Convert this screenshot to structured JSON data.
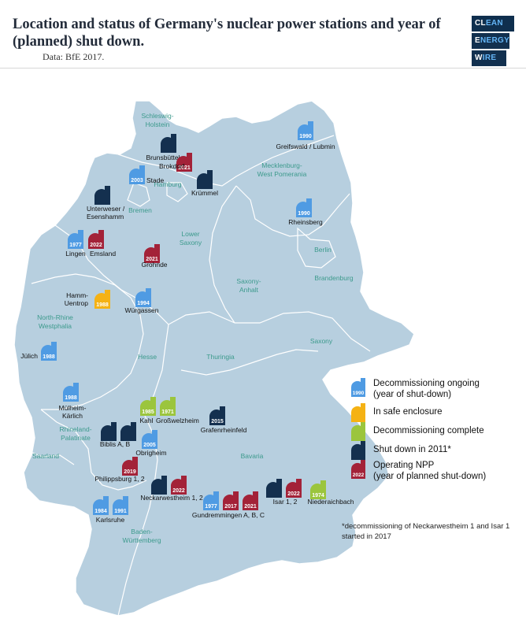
{
  "title": "Location and status of Germany's nuclear power stations and year of (planned) shut down.",
  "source": "Data: BfE 2017.",
  "logo": {
    "line1a": "CL",
    "line1b": "EAN",
    "line2a": "E",
    "line2b": "NERGY",
    "line3a": "W",
    "line3b": "IRE"
  },
  "colors": {
    "ongoing": "#4f9be3",
    "safe": "#f5b214",
    "complete": "#9bc53d",
    "shutdown2011": "#14304f",
    "operating": "#a32238",
    "land": "#b7cfdf",
    "land_stroke": "#ffffff",
    "state_text": "#3c9a8c"
  },
  "legend": {
    "ongoing_label": "Decommissioning ongoing",
    "ongoing_sub": "(year of shut-down)",
    "ongoing_year": "1990",
    "safe_label": "In safe enclosure",
    "complete_label": "Decommissioning complete",
    "shutdown_label": "Shut down in 2011*",
    "operating_label": "Operating NPP",
    "operating_sub": "(year of planned shut-down)",
    "operating_year": "2022"
  },
  "footnote": "*decommissioning of Neckarwestheim 1 and Isar 1 started in 2017",
  "states": {
    "schleswig": "Schleswig-Holstein",
    "mecklenburg": "Mecklenburg-West Pomerania",
    "hamburg": "Hamburg",
    "bremen": "Bremen",
    "lower_saxony": "Lower Saxony",
    "berlin": "Berlin",
    "brandenburg": "Brandenburg",
    "saxony_anhalt": "Saxony-Anhalt",
    "nrw": "North-Rhine Westphalia",
    "hesse": "Hesse",
    "thuringia": "Thuringia",
    "saxony": "Saxony",
    "rhineland": "Rhineland-Palatinate",
    "saarland": "Saarland",
    "bavaria": "Bavaria",
    "bw": "Baden-Württemberg"
  },
  "plants": {
    "brunsbuettel": {
      "name": "Brunsbüttel",
      "status": "shutdown2011",
      "year": ""
    },
    "brokdorf": {
      "name": "Brokdorf",
      "status": "operating",
      "year": "2021"
    },
    "stade": {
      "name": "Stade",
      "status": "ongoing",
      "year": "2003"
    },
    "kruemmel": {
      "name": "Krümmel",
      "status": "shutdown2011",
      "year": ""
    },
    "greifswald": {
      "name": "Greifswald / Lubmin",
      "status": "ongoing",
      "year": "1990"
    },
    "rheinsberg": {
      "name": "Rheinsberg",
      "status": "ongoing",
      "year": "1990"
    },
    "unterweser": {
      "name": "Unterweser / Esenshamm",
      "status": "shutdown2011",
      "year": ""
    },
    "lingen": {
      "name": "Lingen",
      "status": "ongoing",
      "year": "1977"
    },
    "emsland": {
      "name": "Emsland",
      "status": "operating",
      "year": "2022"
    },
    "grohnde": {
      "name": "Grohnde",
      "status": "operating",
      "year": "2021"
    },
    "hamm": {
      "name": "Hamm-Uentrop",
      "status": "safe",
      "year": "1988"
    },
    "wuergassen": {
      "name": "Würgassen",
      "status": "ongoing",
      "year": "1994"
    },
    "juelich": {
      "name": "Jülich",
      "status": "ongoing",
      "year": "1988"
    },
    "muelheim": {
      "name": "Mülheim-Kärlich",
      "status": "ongoing",
      "year": "1988"
    },
    "kahl": {
      "name": "Kahl",
      "status": "complete",
      "year": "1985"
    },
    "grosswelzheim": {
      "name": "Großwelzheim",
      "status": "complete",
      "year": "1971"
    },
    "grafenrheinfeld": {
      "name": "Grafenrheinfeld",
      "status": "shutdown2011",
      "year": "2015"
    },
    "biblis": {
      "name": "Biblis A, B",
      "status": "shutdown2011",
      "year": ""
    },
    "obrigheim": {
      "name": "Obrigheim",
      "status": "ongoing",
      "year": "2005"
    },
    "philippsburg": {
      "name": "Philippsburg 1, 2",
      "status": "operating",
      "year": "2019"
    },
    "neckarwestheim": {
      "name": "Neckarwestheim 1, 2",
      "status": "operating",
      "year": "2022"
    },
    "karlsruhe": {
      "name": "Karlsruhe",
      "status": "ongoing",
      "year": "1984",
      "year2": "1991"
    },
    "gundremmingen": {
      "name": "Gundremmingen A, B, C",
      "status": "ongoing",
      "year": "1977",
      "year2": "2017",
      "year3": "2021"
    },
    "isar": {
      "name": "Isar 1, 2",
      "status": "operating",
      "year": "2022"
    },
    "niederaichbach": {
      "name": "Niederaichbach",
      "status": "complete",
      "year": "1974"
    }
  }
}
